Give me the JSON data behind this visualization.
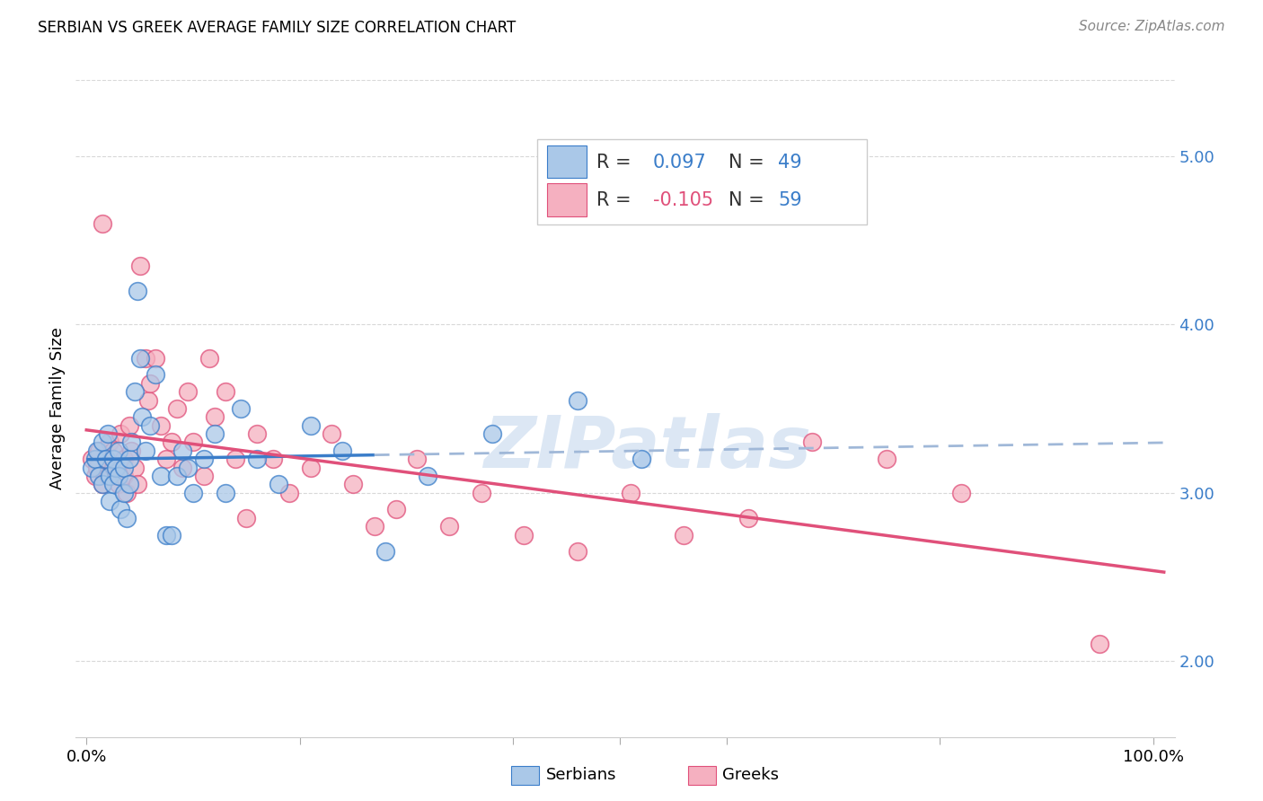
{
  "title": "SERBIAN VS GREEK AVERAGE FAMILY SIZE CORRELATION CHART",
  "source": "Source: ZipAtlas.com",
  "ylabel": "Average Family Size",
  "ytick_labels": [
    "2.00",
    "3.00",
    "4.00",
    "5.00"
  ],
  "ytick_values": [
    2.0,
    3.0,
    4.0,
    5.0
  ],
  "ylim": [
    1.55,
    5.45
  ],
  "xlim": [
    -0.01,
    1.02
  ],
  "R_serbian": 0.097,
  "N_serbian": 49,
  "R_greek": -0.105,
  "N_greek": 59,
  "color_serbian": "#aac8e8",
  "color_greek": "#f5b0c0",
  "line_color_serbian": "#3a7dc9",
  "line_color_greek": "#e0507a",
  "dashed_color": "#a0b8d8",
  "watermark_color": "#c5d8ee",
  "serbian_x": [
    0.005,
    0.008,
    0.01,
    0.012,
    0.015,
    0.015,
    0.018,
    0.02,
    0.022,
    0.022,
    0.025,
    0.025,
    0.028,
    0.03,
    0.03,
    0.032,
    0.035,
    0.035,
    0.038,
    0.04,
    0.04,
    0.042,
    0.045,
    0.048,
    0.05,
    0.052,
    0.055,
    0.06,
    0.065,
    0.07,
    0.075,
    0.08,
    0.085,
    0.09,
    0.095,
    0.1,
    0.11,
    0.12,
    0.13,
    0.145,
    0.16,
    0.18,
    0.21,
    0.24,
    0.28,
    0.32,
    0.38,
    0.46,
    0.52
  ],
  "serbian_y": [
    3.15,
    3.2,
    3.25,
    3.1,
    3.3,
    3.05,
    3.2,
    3.35,
    2.95,
    3.1,
    3.2,
    3.05,
    3.15,
    3.25,
    3.1,
    2.9,
    3.15,
    3.0,
    2.85,
    3.2,
    3.05,
    3.3,
    3.6,
    4.2,
    3.8,
    3.45,
    3.25,
    3.4,
    3.7,
    3.1,
    2.75,
    2.75,
    3.1,
    3.25,
    3.15,
    3.0,
    3.2,
    3.35,
    3.0,
    3.5,
    3.2,
    3.05,
    3.4,
    3.25,
    2.65,
    3.1,
    3.35,
    3.55,
    3.2
  ],
  "greek_x": [
    0.005,
    0.008,
    0.01,
    0.012,
    0.015,
    0.015,
    0.018,
    0.02,
    0.022,
    0.025,
    0.025,
    0.028,
    0.03,
    0.032,
    0.035,
    0.035,
    0.038,
    0.04,
    0.042,
    0.045,
    0.048,
    0.05,
    0.055,
    0.058,
    0.06,
    0.065,
    0.07,
    0.075,
    0.08,
    0.085,
    0.09,
    0.095,
    0.1,
    0.11,
    0.115,
    0.12,
    0.13,
    0.14,
    0.15,
    0.16,
    0.175,
    0.19,
    0.21,
    0.23,
    0.25,
    0.27,
    0.29,
    0.31,
    0.34,
    0.37,
    0.41,
    0.46,
    0.51,
    0.56,
    0.62,
    0.68,
    0.75,
    0.82,
    0.95
  ],
  "greek_y": [
    3.2,
    3.1,
    3.15,
    3.25,
    3.05,
    4.6,
    3.2,
    3.1,
    3.3,
    3.15,
    3.25,
    3.1,
    3.05,
    3.35,
    3.2,
    3.1,
    3.0,
    3.4,
    3.25,
    3.15,
    3.05,
    4.35,
    3.8,
    3.55,
    3.65,
    3.8,
    3.4,
    3.2,
    3.3,
    3.5,
    3.15,
    3.6,
    3.3,
    3.1,
    3.8,
    3.45,
    3.6,
    3.2,
    2.85,
    3.35,
    3.2,
    3.0,
    3.15,
    3.35,
    3.05,
    2.8,
    2.9,
    3.2,
    2.8,
    3.0,
    2.75,
    2.65,
    3.0,
    2.75,
    2.85,
    3.3,
    3.2,
    3.0,
    2.1
  ]
}
